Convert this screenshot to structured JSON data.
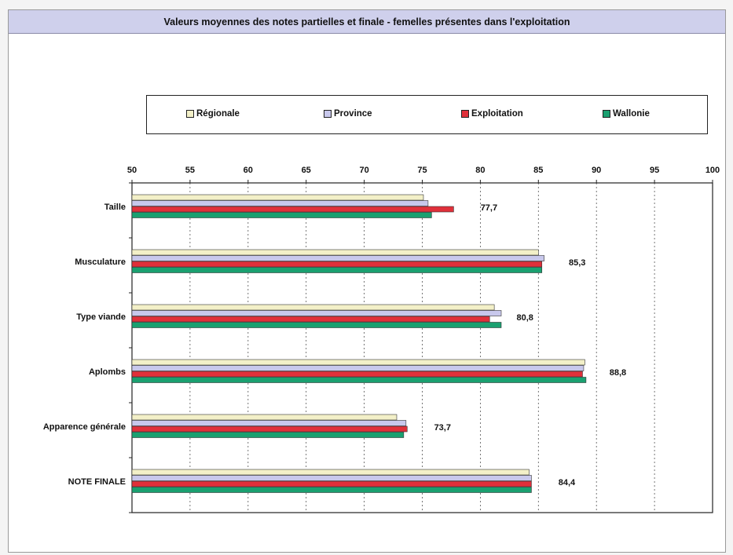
{
  "chart_data": {
    "type": "bar",
    "orientation": "horizontal",
    "title": "Valeurs moyennes des notes partielles et finale - femelles présentes dans l'exploitation",
    "categories": [
      "Taille",
      "Musculature",
      "Type viande",
      "Aplombs",
      "Apparence générale",
      "NOTE FINALE"
    ],
    "series": [
      {
        "name": "Régionale",
        "color": "#f3f0c8",
        "values": [
          75.1,
          85.0,
          81.2,
          89.0,
          72.8,
          84.2
        ]
      },
      {
        "name": "Province",
        "color": "#c8c8ec",
        "values": [
          75.5,
          85.5,
          81.8,
          88.9,
          73.6,
          84.4
        ]
      },
      {
        "name": "Exploitation",
        "color": "#e0303a",
        "values": [
          77.7,
          85.3,
          80.8,
          88.8,
          73.7,
          84.4
        ]
      },
      {
        "name": "Wallonie",
        "color": "#1aa070",
        "values": [
          75.8,
          85.3,
          81.8,
          89.1,
          73.4,
          84.4
        ]
      }
    ],
    "data_labels": [
      "77,7",
      "85,3",
      "80,8",
      "88,8",
      "73,7",
      "84,4"
    ],
    "xlim": [
      50,
      100
    ],
    "xticks": [
      50,
      55,
      60,
      65,
      70,
      75,
      80,
      85,
      90,
      95,
      100
    ],
    "grid": true,
    "legend_position": "top"
  }
}
